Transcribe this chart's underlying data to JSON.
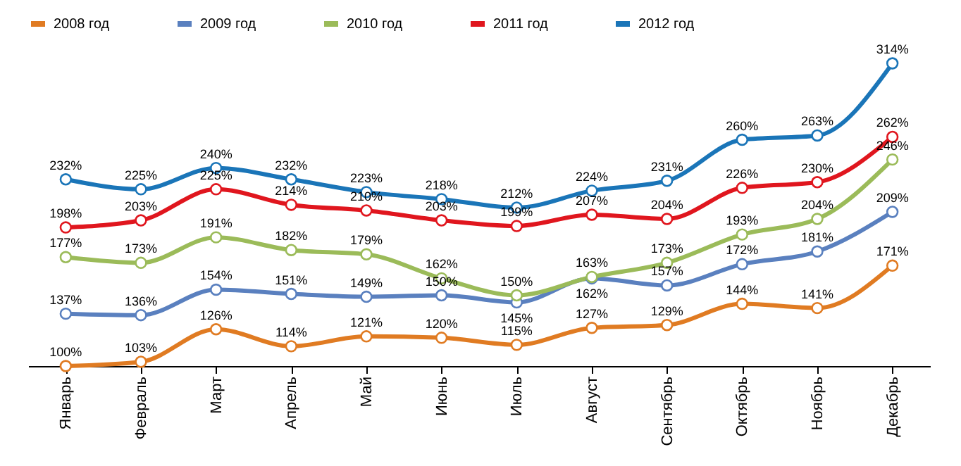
{
  "chart_data": {
    "type": "line",
    "categories": [
      "Январь",
      "Февраль",
      "Март",
      "Апрель",
      "Май",
      "Июнь",
      "Июль",
      "Август",
      "Сентябрь",
      "Октябрь",
      "Ноябрь",
      "Декабрь"
    ],
    "series": [
      {
        "name": "2008 год",
        "color": "#e07b22",
        "values": [
          100,
          103,
          126,
          114,
          121,
          120,
          115,
          127,
          129,
          144,
          141,
          171
        ],
        "value_labels": [
          "100%",
          "103%",
          "126%",
          "114%",
          "121%",
          "120%",
          "115%",
          "127%",
          "129%",
          "144%",
          "141%",
          "171%"
        ]
      },
      {
        "name": "2009 год",
        "color": "#5a80bf",
        "values": [
          137,
          136,
          154,
          151,
          149,
          150,
          145,
          162,
          157,
          172,
          181,
          209
        ],
        "value_labels": [
          "137%",
          "136%",
          "154%",
          "151%",
          "149%",
          "150%",
          "145%",
          "162%",
          "157%",
          "172%",
          "181%",
          "209%"
        ]
      },
      {
        "name": "2010 год",
        "color": "#9bbb59",
        "values": [
          177,
          173,
          191,
          182,
          179,
          162,
          150,
          163,
          173,
          193,
          204,
          246
        ],
        "value_labels": [
          "177%",
          "173%",
          "191%",
          "182%",
          "179%",
          "162%",
          "150%",
          "163%",
          "173%",
          "193%",
          "204%",
          "246%"
        ]
      },
      {
        "name": "2011 год",
        "color": "#e0161e",
        "values": [
          198,
          203,
          225,
          214,
          210,
          203,
          199,
          207,
          204,
          226,
          230,
          262
        ],
        "value_labels": [
          "198%",
          "203%",
          "225%",
          "214%",
          "210%",
          "203%",
          "199%",
          "207%",
          "204%",
          "226%",
          "230%",
          "262%"
        ]
      },
      {
        "name": "2012 год",
        "color": "#1a75b8",
        "values": [
          232,
          225,
          240,
          232,
          223,
          218,
          212,
          224,
          231,
          260,
          263,
          314
        ],
        "value_labels": [
          "232%",
          "225%",
          "240%",
          "232%",
          "223%",
          "218%",
          "212%",
          "224%",
          "231%",
          "260%",
          "263%",
          "314%"
        ]
      }
    ],
    "legend": "top",
    "marker": "circle",
    "line_style": "solid",
    "tick_labels": "x"
  }
}
